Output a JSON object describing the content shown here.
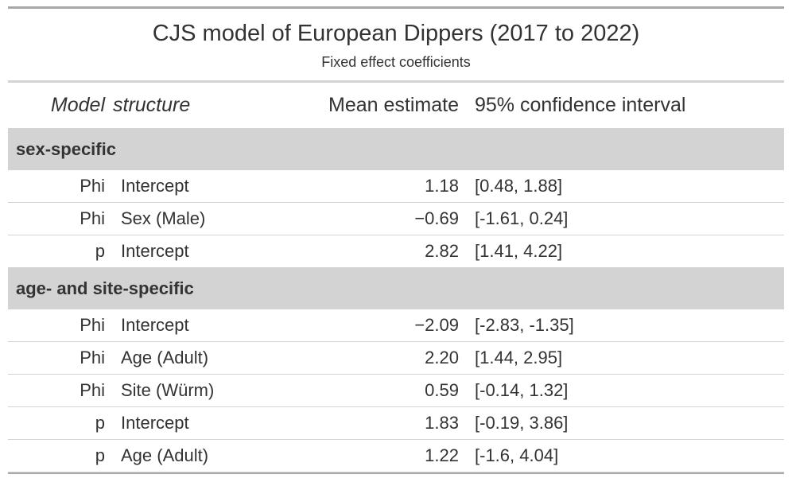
{
  "table": {
    "title": "CJS model of European Dippers (2017 to 2022)",
    "subtitle": "Fixed effect coefficients",
    "headers": {
      "model": "Model",
      "structure": "structure",
      "mean": "Mean estimate",
      "ci": "95% confidence interval"
    },
    "groups": [
      {
        "label": "sex-specific",
        "rows": [
          {
            "param": "Phi",
            "term": "Intercept",
            "mean": "1.18",
            "ci": "[0.48, 1.88]"
          },
          {
            "param": "Phi",
            "term": "Sex (Male)",
            "mean": "−0.69",
            "ci": "[-1.61, 0.24]"
          },
          {
            "param": "p",
            "term": "Intercept",
            "mean": "2.82",
            "ci": "[1.41, 4.22]"
          }
        ]
      },
      {
        "label": "age- and site-specific",
        "rows": [
          {
            "param": "Phi",
            "term": "Intercept",
            "mean": "−2.09",
            "ci": "[-2.83, -1.35]"
          },
          {
            "param": "Phi",
            "term": "Age (Adult)",
            "mean": "2.20",
            "ci": "[1.44, 2.95]"
          },
          {
            "param": "Phi",
            "term": "Site (Würm)",
            "mean": "0.59",
            "ci": "[-0.14, 1.32]"
          },
          {
            "param": "p",
            "term": "Intercept",
            "mean": "1.83",
            "ci": "[-0.19, 3.86]"
          },
          {
            "param": "p",
            "term": "Age (Adult)",
            "mean": "1.22",
            "ci": "[-1.6, 4.04]"
          }
        ]
      }
    ]
  }
}
